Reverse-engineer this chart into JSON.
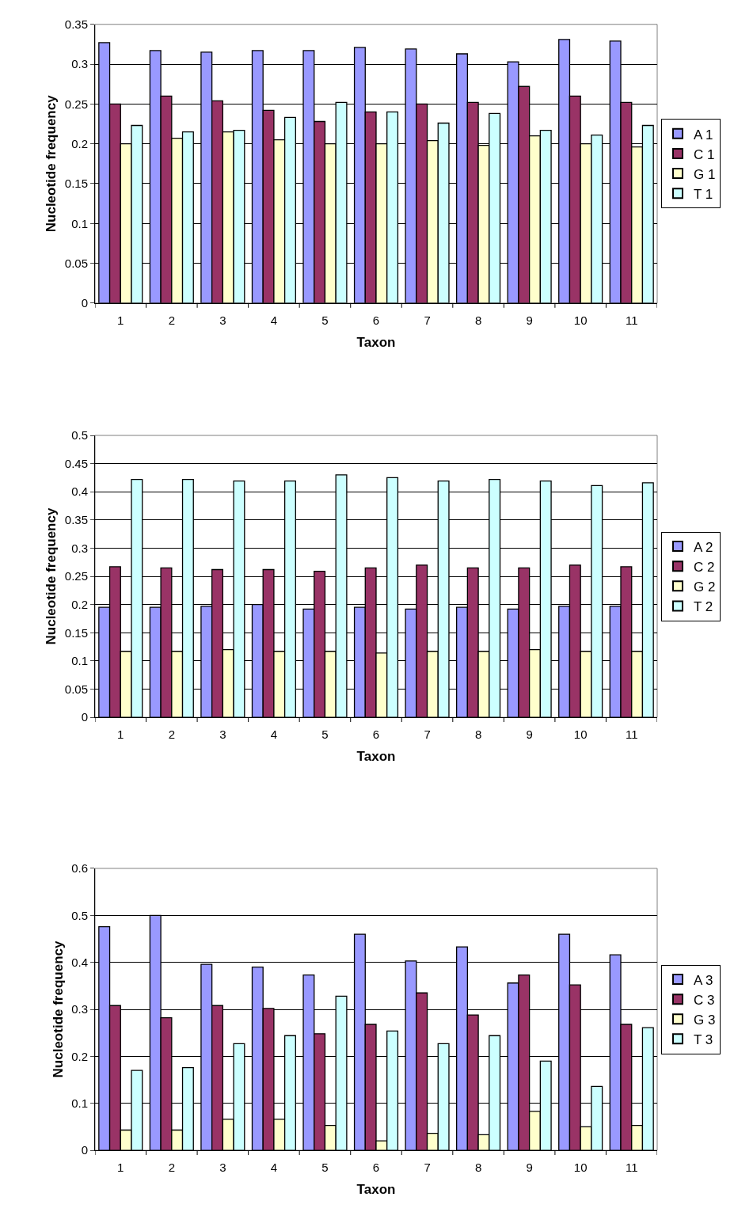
{
  "chart_data": [
    {
      "type": "bar",
      "xlabel": "Taxon",
      "ylabel": "Nucleotide frequency",
      "categories": [
        "1",
        "2",
        "3",
        "4",
        "5",
        "6",
        "7",
        "8",
        "9",
        "10",
        "11"
      ],
      "ylim": [
        0,
        0.35
      ],
      "yticks": [
        0,
        0.05,
        0.1,
        0.15,
        0.2,
        0.25,
        0.3,
        0.35
      ],
      "grid": "y",
      "legend": "right",
      "series": [
        {
          "name": "A 1",
          "color": "#9999ff",
          "values": [
            0.327,
            0.317,
            0.315,
            0.317,
            0.317,
            0.321,
            0.319,
            0.313,
            0.303,
            0.331,
            0.329
          ]
        },
        {
          "name": "C 1",
          "color": "#993366",
          "values": [
            0.25,
            0.26,
            0.254,
            0.242,
            0.228,
            0.24,
            0.25,
            0.252,
            0.272,
            0.26,
            0.252
          ]
        },
        {
          "name": "G 1",
          "color": "#ffffcc",
          "values": [
            0.2,
            0.207,
            0.215,
            0.205,
            0.2,
            0.2,
            0.204,
            0.198,
            0.21,
            0.2,
            0.196
          ]
        },
        {
          "name": "T 1",
          "color": "#ccffff",
          "values": [
            0.223,
            0.215,
            0.217,
            0.233,
            0.252,
            0.24,
            0.226,
            0.238,
            0.217,
            0.211,
            0.223
          ]
        }
      ]
    },
    {
      "type": "bar",
      "xlabel": "Taxon",
      "ylabel": "Nucleotide frequency",
      "categories": [
        "1",
        "2",
        "3",
        "4",
        "5",
        "6",
        "7",
        "8",
        "9",
        "10",
        "11"
      ],
      "ylim": [
        0,
        0.5
      ],
      "yticks": [
        0,
        0.05,
        0.1,
        0.15,
        0.2,
        0.25,
        0.3,
        0.35,
        0.4,
        0.45,
        0.5
      ],
      "grid": "y",
      "legend": "right",
      "series": [
        {
          "name": "A 2",
          "color": "#9999ff",
          "values": [
            0.195,
            0.195,
            0.197,
            0.2,
            0.192,
            0.195,
            0.192,
            0.195,
            0.192,
            0.197,
            0.197
          ]
        },
        {
          "name": "C 2",
          "color": "#993366",
          "values": [
            0.267,
            0.265,
            0.262,
            0.262,
            0.259,
            0.265,
            0.27,
            0.265,
            0.265,
            0.27,
            0.267
          ]
        },
        {
          "name": "G 2",
          "color": "#ffffcc",
          "values": [
            0.117,
            0.117,
            0.12,
            0.117,
            0.117,
            0.114,
            0.117,
            0.117,
            0.12,
            0.117,
            0.117
          ]
        },
        {
          "name": "T 2",
          "color": "#ccffff",
          "values": [
            0.422,
            0.422,
            0.419,
            0.419,
            0.43,
            0.425,
            0.419,
            0.422,
            0.419,
            0.411,
            0.416
          ]
        }
      ]
    },
    {
      "type": "bar",
      "xlabel": "Taxon",
      "ylabel": "Nucleotide frequency",
      "categories": [
        "1",
        "2",
        "3",
        "4",
        "5",
        "6",
        "7",
        "8",
        "9",
        "10",
        "11"
      ],
      "ylim": [
        0,
        0.6
      ],
      "yticks": [
        0,
        0.1,
        0.2,
        0.3,
        0.4,
        0.5,
        0.6
      ],
      "grid": "y",
      "legend": "right",
      "series": [
        {
          "name": "A 3",
          "color": "#9999ff",
          "values": [
            0.476,
            0.5,
            0.396,
            0.39,
            0.373,
            0.46,
            0.403,
            0.433,
            0.356,
            0.46,
            0.416
          ]
        },
        {
          "name": "C 3",
          "color": "#993366",
          "values": [
            0.308,
            0.282,
            0.308,
            0.302,
            0.248,
            0.268,
            0.335,
            0.288,
            0.373,
            0.352,
            0.268
          ]
        },
        {
          "name": "G 3",
          "color": "#ffffcc",
          "values": [
            0.043,
            0.043,
            0.066,
            0.066,
            0.053,
            0.02,
            0.036,
            0.033,
            0.083,
            0.05,
            0.053
          ]
        },
        {
          "name": "T 3",
          "color": "#ccffff",
          "values": [
            0.17,
            0.176,
            0.227,
            0.244,
            0.328,
            0.254,
            0.227,
            0.244,
            0.19,
            0.136,
            0.261
          ]
        }
      ]
    }
  ]
}
